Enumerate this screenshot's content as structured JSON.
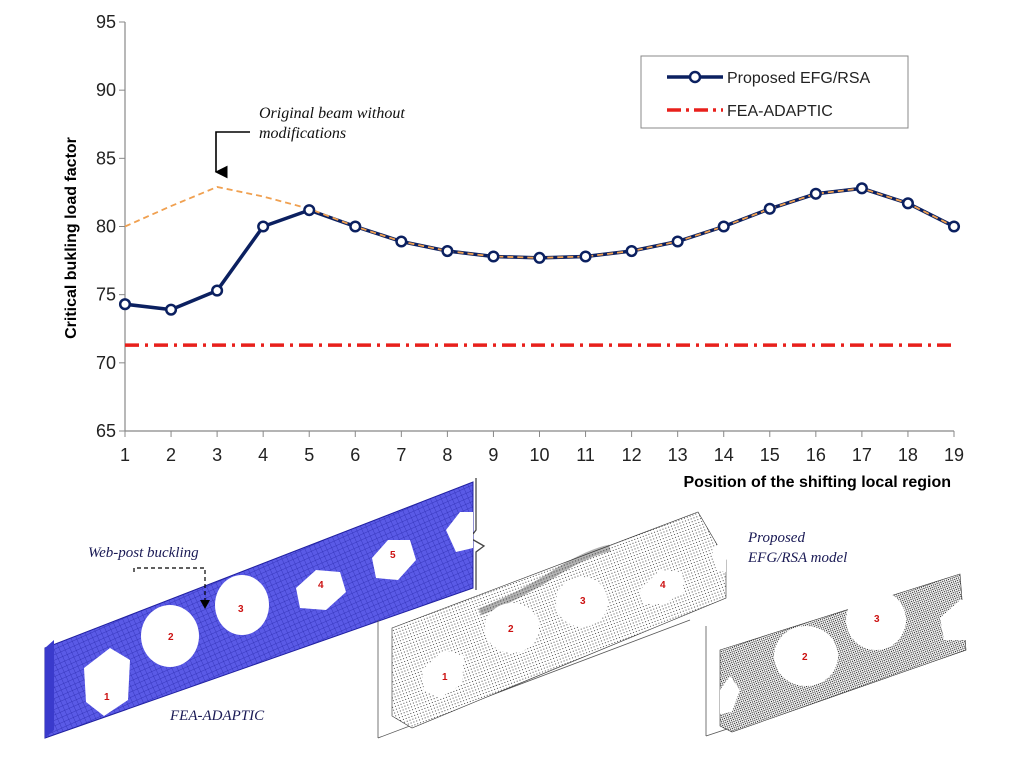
{
  "chart_data": {
    "type": "line",
    "x": [
      1,
      2,
      3,
      4,
      5,
      6,
      7,
      8,
      9,
      10,
      11,
      12,
      13,
      14,
      15,
      16,
      17,
      18,
      19
    ],
    "series": [
      {
        "name": "Proposed EFG/RSA",
        "values": [
          74.3,
          73.9,
          75.3,
          80.0,
          81.2,
          80.0,
          78.9,
          78.2,
          77.8,
          77.7,
          77.8,
          78.2,
          78.9,
          80.0,
          81.3,
          82.4,
          82.8,
          81.7,
          80.0
        ],
        "color": "#0b2060",
        "marker": "open-circle"
      },
      {
        "name": "FEA-ADAPTIC",
        "values": [
          71.3,
          71.3,
          71.3,
          71.3,
          71.3,
          71.3,
          71.3,
          71.3,
          71.3,
          71.3,
          71.3,
          71.3,
          71.3,
          71.3,
          71.3,
          71.3,
          71.3,
          71.3,
          71.3
        ],
        "color": "#e8201c",
        "style": "dash-dot"
      },
      {
        "values": [
          80.0,
          81.5,
          82.9,
          82.2,
          81.3,
          80.0,
          78.9,
          78.2,
          77.8,
          77.7,
          77.8,
          78.2,
          78.9,
          80.0,
          81.3,
          82.4,
          82.8,
          81.7,
          80.0
        ],
        "color": "#f0a050",
        "style": "dashed"
      }
    ],
    "xlabel": "Position of the shifting local region",
    "ylabel": "Critical bukling load factor",
    "xlim": [
      1,
      19
    ],
    "ylim": [
      65,
      95
    ],
    "yticks": [
      65,
      70,
      75,
      80,
      85,
      90,
      95
    ],
    "grid": false,
    "legend": "top-right",
    "annotation": {
      "line1": "Original beam without",
      "line2": "modifications",
      "x": 3,
      "y": 82.9
    }
  },
  "illustrations": {
    "fea_label": "FEA-ADAPTIC",
    "webpost_label": "Web-post buckling",
    "efg_label_line1": "Proposed",
    "efg_label_line2": "EFG/RSA model",
    "fea_hole_numbers": [
      "1",
      "2",
      "3",
      "4",
      "5"
    ],
    "efg_hole_numbers": [
      "1",
      "2",
      "3",
      "4"
    ],
    "zoom_hole_numbers": [
      "2",
      "3"
    ],
    "mesh_color": "#3a3acc"
  }
}
